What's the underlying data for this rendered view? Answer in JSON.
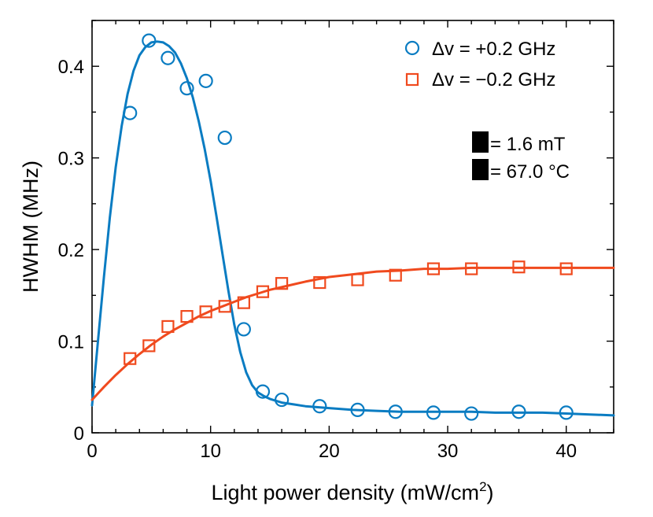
{
  "colors": {
    "blue": "#0a7cc2",
    "orange": "#f04a1e"
  },
  "chart_data": {
    "type": "scatter",
    "xlabel_main": "Light power density (mW/cm",
    "xlabel_sup": "2",
    "xlabel_close": ")",
    "ylabel": "HWHM (MHz)",
    "xlim": [
      0,
      44
    ],
    "ylim": [
      0,
      0.45
    ],
    "xticks": [
      0,
      10,
      20,
      30,
      40
    ],
    "yticks": [
      0,
      0.1,
      0.2,
      0.3,
      0.4
    ],
    "xtick_labels": [
      "0",
      "10",
      "20",
      "30",
      "40"
    ],
    "ytick_labels": [
      "0",
      "0.1",
      "0.2",
      "0.3",
      "0.4"
    ],
    "legend_position": "top-right",
    "series": [
      {
        "name": "Δv = +0.2 GHz",
        "marker": "circle",
        "color": "#0a7cc2",
        "x": [
          3.2,
          4.8,
          6.4,
          8.0,
          9.6,
          11.2,
          12.8,
          14.4,
          16.0,
          19.2,
          22.4,
          25.6,
          28.8,
          32.0,
          36.0,
          40.0
        ],
        "y": [
          0.349,
          0.428,
          0.409,
          0.376,
          0.384,
          0.322,
          0.113,
          0.045,
          0.036,
          0.029,
          0.025,
          0.023,
          0.022,
          0.021,
          0.023,
          0.022
        ],
        "fit_x": [
          0,
          0.5,
          1,
          1.5,
          2,
          2.5,
          3,
          3.5,
          4,
          4.5,
          5,
          5.5,
          6,
          6.5,
          7,
          7.5,
          8,
          8.5,
          9,
          9.5,
          10,
          10.5,
          11,
          11.5,
          12,
          12.5,
          13,
          13.5,
          14,
          14.5,
          15,
          16,
          17,
          18,
          20,
          22,
          24,
          26,
          28,
          30,
          32,
          34,
          36,
          38,
          40,
          42,
          44
        ],
        "fit_y": [
          0.03,
          0.1,
          0.17,
          0.235,
          0.29,
          0.335,
          0.37,
          0.395,
          0.412,
          0.421,
          0.426,
          0.427,
          0.426,
          0.422,
          0.415,
          0.403,
          0.387,
          0.366,
          0.34,
          0.31,
          0.275,
          0.236,
          0.195,
          0.155,
          0.118,
          0.088,
          0.066,
          0.052,
          0.044,
          0.04,
          0.037,
          0.033,
          0.031,
          0.029,
          0.027,
          0.025,
          0.024,
          0.023,
          0.023,
          0.023,
          0.023,
          0.022,
          0.022,
          0.022,
          0.021,
          0.02,
          0.019
        ]
      },
      {
        "name": "Δv = −0.2 GHz",
        "marker": "square",
        "color": "#f04a1e",
        "x": [
          3.2,
          4.8,
          6.4,
          8.0,
          9.6,
          11.2,
          12.8,
          14.4,
          16.0,
          19.2,
          22.4,
          25.6,
          28.8,
          32.0,
          36.0,
          40.0
        ],
        "y": [
          0.081,
          0.095,
          0.116,
          0.127,
          0.132,
          0.138,
          0.142,
          0.154,
          0.163,
          0.164,
          0.167,
          0.172,
          0.179,
          0.179,
          0.181,
          0.179
        ],
        "fit_x": [
          0,
          1,
          2,
          3,
          4,
          5,
          6,
          7,
          8,
          9,
          10,
          11,
          12,
          13,
          14,
          15,
          16,
          18,
          20,
          22,
          24,
          26,
          28,
          30,
          32,
          34,
          36,
          38,
          40,
          42,
          44
        ],
        "fit_y": [
          0.036,
          0.05,
          0.063,
          0.075,
          0.086,
          0.096,
          0.105,
          0.113,
          0.12,
          0.127,
          0.133,
          0.138,
          0.143,
          0.148,
          0.152,
          0.156,
          0.159,
          0.165,
          0.17,
          0.173,
          0.176,
          0.177,
          0.179,
          0.179,
          0.18,
          0.18,
          0.18,
          0.18,
          0.18,
          0.18,
          0.18
        ]
      }
    ],
    "annotations": [
      "= 1.6 mT",
      "= 67.0 °C"
    ]
  }
}
